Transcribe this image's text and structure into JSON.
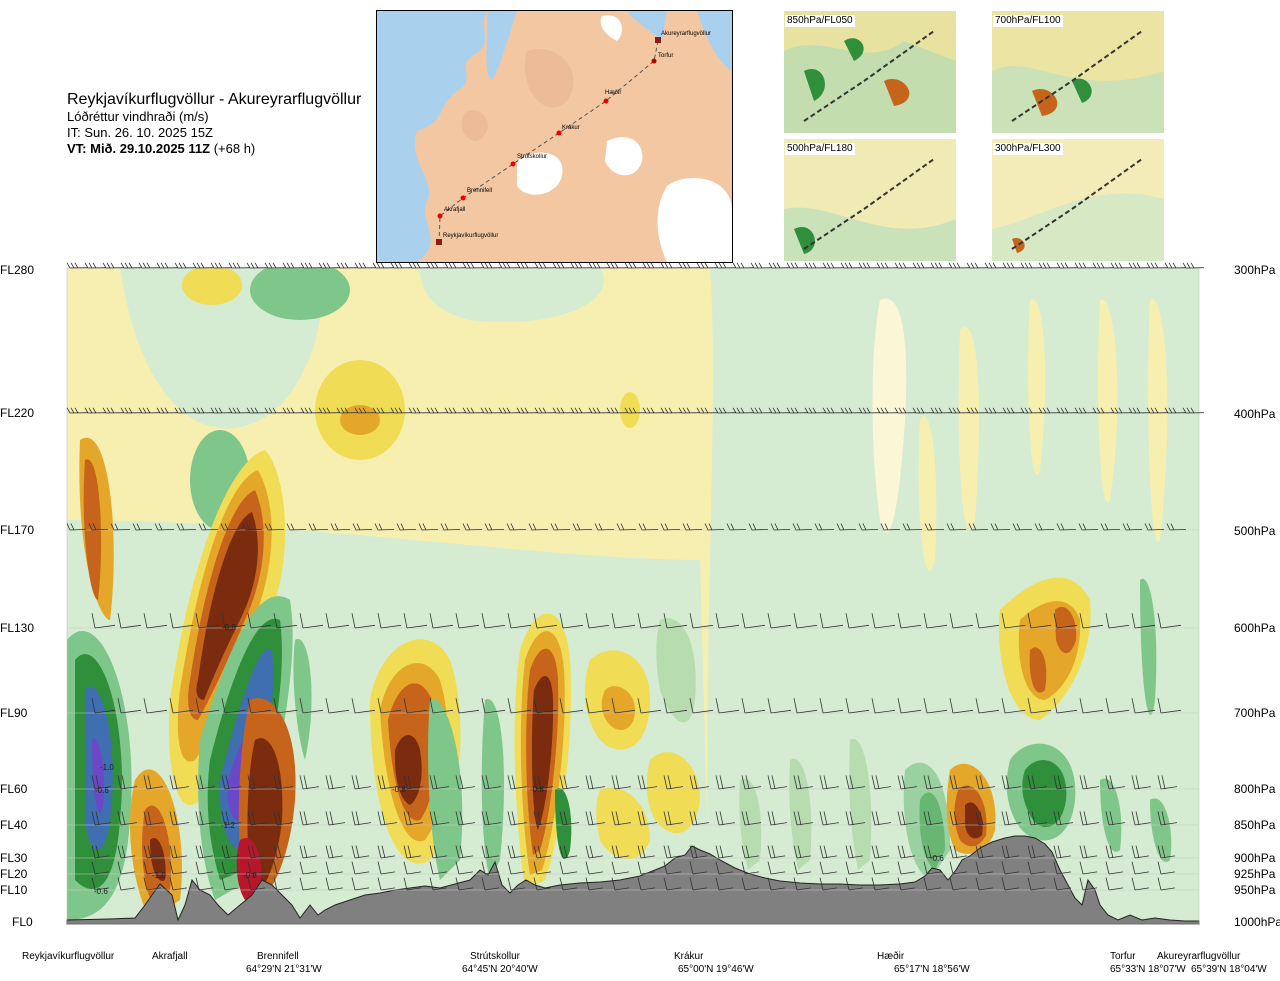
{
  "header": {
    "route": "Reykjavíkurflugvöllur - Akureyrarflugvöllur",
    "variable": "Lóðréttur vindhraði (m/s)",
    "issue_time": "IT: Sun. 26. 10. 2025 15Z",
    "valid_prefix": "VT: Mið. 29.10.2025 11Z",
    "valid_suffix": "(+68 h)"
  },
  "map": {
    "points": [
      "Akureyrarflugvöllur",
      "Torfur",
      "Hæðir",
      "Krákur",
      "Strútskollur",
      "Brennifell",
      "Akrafjall",
      "Reykjavíkurflugvöllur"
    ]
  },
  "thumbnails": [
    "850hPa/FL050",
    "700hPa/FL100",
    "500hPa/FL180",
    "300hPa/FL300"
  ],
  "chart_data": {
    "type": "heatmap",
    "title": "Reykjavíkurflugvöllur - Akureyrarflugvöllur",
    "variable": "Lóðréttur vindhraði (m/s)",
    "y_left_labels": [
      "FL280",
      "FL220",
      "FL170",
      "FL130",
      "FL90",
      "FL60",
      "FL40",
      "FL30",
      "FL20",
      "FL10",
      "FL0"
    ],
    "y_right_labels": [
      "300hPa",
      "400hPa",
      "500hPa",
      "600hPa",
      "700hPa",
      "800hPa",
      "850hPa",
      "900hPa",
      "925hPa",
      "950hPa",
      "1000hPa"
    ],
    "x_locations": [
      {
        "name": "Reykjavíkurflugvöllur",
        "coord": ""
      },
      {
        "name": "Akrafjall",
        "coord": ""
      },
      {
        "name": "Brennifell",
        "coord": "64°29'N 21°31'W"
      },
      {
        "name": "Strútskollur",
        "coord": "64°45'N 20°40'W"
      },
      {
        "name": "Krákur",
        "coord": "65°00'N 19°46'W"
      },
      {
        "name": "Hæðir",
        "coord": "65°17'N 18°56'W"
      },
      {
        "name": "Torfur",
        "coord": "65°33'N 18°07'W"
      },
      {
        "name": "Akureyrarflugvöllur",
        "coord": "65°39'N 18°04'W"
      }
    ],
    "contour_labels": [
      "-0.6",
      "-1.0",
      "-1.2",
      "-0.8",
      "-0.8",
      "-0.8",
      "-0.8",
      "-0.6",
      "-0.6",
      "-1.0"
    ],
    "colors": {
      "strong_down": "#7b2c0e",
      "down": "#c7641b",
      "mod_down": "#e5a72a",
      "weak_down": "#f0dd55",
      "neutral": "#f7f0b0",
      "weak_up": "#d5ecd2",
      "up": "#7fc68a",
      "mod_up": "#2f8f3a",
      "strong_up": "#3f6fb0",
      "very_strong_up": "#6b48c8",
      "terrain": "#808080"
    }
  }
}
